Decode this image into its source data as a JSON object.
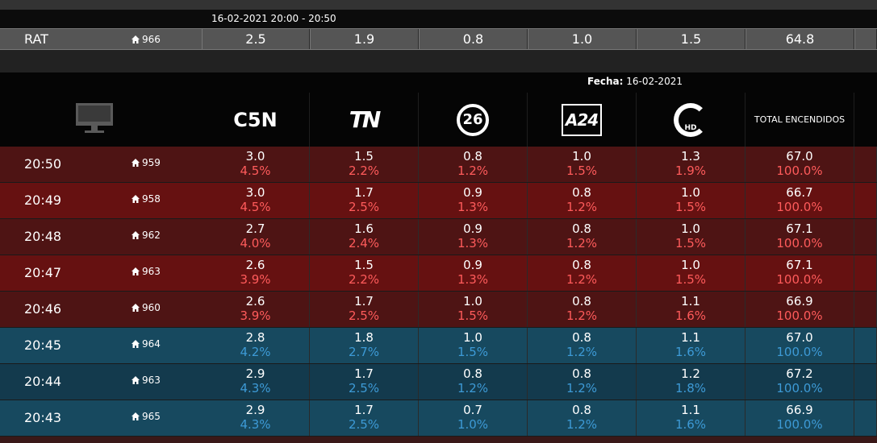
{
  "summary": {
    "range": "16-02-2021 20:00 - 20:50",
    "label": "RAT",
    "homes": "966",
    "values": [
      "2.5",
      "1.9",
      "0.8",
      "1.0",
      "1.5",
      "64.8"
    ]
  },
  "date": {
    "label": "Fecha:",
    "value": "16-02-2021"
  },
  "channels": [
    "C5N",
    "TN",
    "26",
    "A24",
    "HD",
    "TOTAL ENCENDIDOS"
  ],
  "rows": [
    {
      "time": "20:50",
      "homes": "959",
      "color": "#4e1414",
      "values": [
        [
          "3.0",
          "4.5%"
        ],
        [
          "1.5",
          "2.2%"
        ],
        [
          "0.8",
          "1.2%"
        ],
        [
          "1.0",
          "1.5%"
        ],
        [
          "1.3",
          "1.9%"
        ],
        [
          "67.0",
          "100.0%"
        ]
      ]
    },
    {
      "time": "20:49",
      "homes": "958",
      "color": "#661111",
      "values": [
        [
          "3.0",
          "4.5%"
        ],
        [
          "1.7",
          "2.5%"
        ],
        [
          "0.9",
          "1.3%"
        ],
        [
          "0.8",
          "1.2%"
        ],
        [
          "1.0",
          "1.5%"
        ],
        [
          "66.7",
          "100.0%"
        ]
      ]
    },
    {
      "time": "20:48",
      "homes": "962",
      "color": "#4e1414",
      "values": [
        [
          "2.7",
          "4.0%"
        ],
        [
          "1.6",
          "2.4%"
        ],
        [
          "0.9",
          "1.3%"
        ],
        [
          "0.8",
          "1.2%"
        ],
        [
          "1.0",
          "1.5%"
        ],
        [
          "67.1",
          "100.0%"
        ]
      ]
    },
    {
      "time": "20:47",
      "homes": "963",
      "color": "#661111",
      "values": [
        [
          "2.6",
          "3.9%"
        ],
        [
          "1.5",
          "2.2%"
        ],
        [
          "0.9",
          "1.3%"
        ],
        [
          "0.8",
          "1.2%"
        ],
        [
          "1.0",
          "1.5%"
        ],
        [
          "67.1",
          "100.0%"
        ]
      ]
    },
    {
      "time": "20:46",
      "homes": "960",
      "color": "#4e1414",
      "values": [
        [
          "2.6",
          "3.9%"
        ],
        [
          "1.7",
          "2.5%"
        ],
        [
          "1.0",
          "1.5%"
        ],
        [
          "0.8",
          "1.2%"
        ],
        [
          "1.1",
          "1.6%"
        ],
        [
          "66.9",
          "100.0%"
        ]
      ]
    },
    {
      "time": "20:45",
      "homes": "964",
      "color": "#17495f",
      "values": [
        [
          "2.8",
          "4.2%"
        ],
        [
          "1.8",
          "2.7%"
        ],
        [
          "1.0",
          "1.5%"
        ],
        [
          "0.8",
          "1.2%"
        ],
        [
          "1.1",
          "1.6%"
        ],
        [
          "67.0",
          "100.0%"
        ]
      ]
    },
    {
      "time": "20:44",
      "homes": "963",
      "color": "#133a4d",
      "values": [
        [
          "2.9",
          "4.3%"
        ],
        [
          "1.7",
          "2.5%"
        ],
        [
          "0.8",
          "1.2%"
        ],
        [
          "0.8",
          "1.2%"
        ],
        [
          "1.2",
          "1.8%"
        ],
        [
          "67.2",
          "100.0%"
        ]
      ]
    },
    {
      "time": "20:43",
      "homes": "965",
      "color": "#17495f",
      "values": [
        [
          "2.9",
          "4.3%"
        ],
        [
          "1.7",
          "2.5%"
        ],
        [
          "0.7",
          "1.0%"
        ],
        [
          "0.8",
          "1.2%"
        ],
        [
          "1.1",
          "1.6%"
        ],
        [
          "66.9",
          "100.0%"
        ]
      ]
    }
  ]
}
